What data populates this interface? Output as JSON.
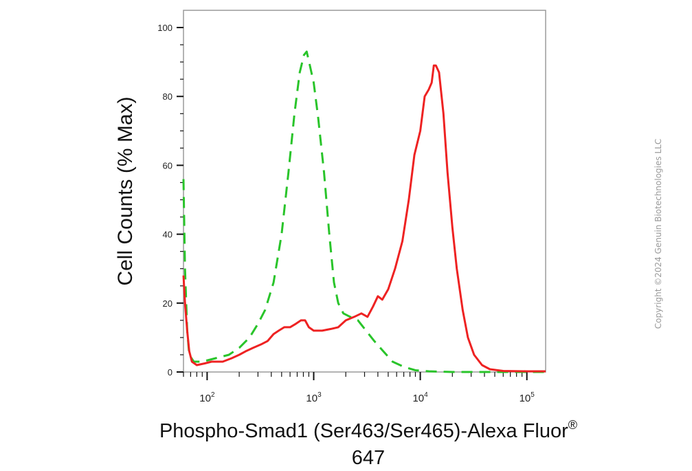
{
  "chart_data": {
    "type": "line",
    "title": "",
    "xlabel": "Phospho-Smad1 (Ser463/Ser465)-Alexa Fluor",
    "xlabel_superscript": "®",
    "xlabel_line2": "647",
    "ylabel": "Cell Counts (% Max)",
    "x_scale": "log",
    "xlim": [
      60,
      150000
    ],
    "ylim": [
      0,
      105
    ],
    "x_ticks": [
      {
        "value": 100,
        "base": "10",
        "exp": "2"
      },
      {
        "value": 1000,
        "base": "10",
        "exp": "3"
      },
      {
        "value": 10000,
        "base": "10",
        "exp": "4"
      },
      {
        "value": 100000,
        "base": "10",
        "exp": "5"
      }
    ],
    "y_ticks": [
      0,
      20,
      40,
      60,
      80,
      100
    ],
    "grid": false,
    "legend": "none",
    "series": [
      {
        "color": "#29c42a",
        "style": "dashed",
        "points": [
          [
            60,
            56
          ],
          [
            62,
            30
          ],
          [
            65,
            12
          ],
          [
            68,
            5
          ],
          [
            75,
            3
          ],
          [
            90,
            3
          ],
          [
            120,
            4
          ],
          [
            160,
            5
          ],
          [
            200,
            7
          ],
          [
            250,
            10
          ],
          [
            300,
            14
          ],
          [
            350,
            18
          ],
          [
            420,
            26
          ],
          [
            500,
            40
          ],
          [
            580,
            58
          ],
          [
            660,
            75
          ],
          [
            740,
            87
          ],
          [
            810,
            92
          ],
          [
            860,
            93
          ],
          [
            920,
            89
          ],
          [
            1000,
            84
          ],
          [
            1100,
            74
          ],
          [
            1250,
            58
          ],
          [
            1400,
            40
          ],
          [
            1550,
            26
          ],
          [
            1700,
            20
          ],
          [
            1900,
            17
          ],
          [
            2200,
            16
          ],
          [
            2600,
            15
          ],
          [
            3100,
            12
          ],
          [
            3700,
            9
          ],
          [
            4500,
            6
          ],
          [
            5500,
            3
          ],
          [
            7000,
            1.5
          ],
          [
            9000,
            0.5
          ],
          [
            12000,
            0.2
          ],
          [
            20000,
            0
          ],
          [
            150000,
            0
          ]
        ]
      },
      {
        "color": "#ee2222",
        "style": "solid",
        "points": [
          [
            60,
            28
          ],
          [
            62,
            20
          ],
          [
            65,
            12
          ],
          [
            68,
            6
          ],
          [
            72,
            3
          ],
          [
            80,
            2
          ],
          [
            95,
            2.5
          ],
          [
            110,
            3
          ],
          [
            140,
            3
          ],
          [
            170,
            4
          ],
          [
            200,
            5
          ],
          [
            230,
            6
          ],
          [
            270,
            7
          ],
          [
            320,
            8
          ],
          [
            370,
            9
          ],
          [
            420,
            11
          ],
          [
            470,
            12
          ],
          [
            530,
            13
          ],
          [
            600,
            13
          ],
          [
            680,
            14
          ],
          [
            760,
            15
          ],
          [
            830,
            15
          ],
          [
            900,
            13
          ],
          [
            1000,
            12
          ],
          [
            1200,
            12
          ],
          [
            1450,
            12.5
          ],
          [
            1700,
            13
          ],
          [
            2000,
            15
          ],
          [
            2400,
            16
          ],
          [
            2800,
            17
          ],
          [
            3200,
            16
          ],
          [
            3600,
            19
          ],
          [
            4000,
            22
          ],
          [
            4400,
            21
          ],
          [
            5000,
            24
          ],
          [
            5800,
            30
          ],
          [
            6800,
            38
          ],
          [
            7800,
            50
          ],
          [
            8800,
            63
          ],
          [
            10000,
            70
          ],
          [
            11000,
            80
          ],
          [
            12000,
            82
          ],
          [
            12800,
            84
          ],
          [
            13400,
            89
          ],
          [
            14000,
            89
          ],
          [
            15000,
            87
          ],
          [
            16500,
            75
          ],
          [
            18000,
            58
          ],
          [
            20000,
            42
          ],
          [
            22000,
            30
          ],
          [
            25000,
            18
          ],
          [
            28000,
            10
          ],
          [
            32000,
            5
          ],
          [
            38000,
            2
          ],
          [
            45000,
            0.8
          ],
          [
            60000,
            0.3
          ],
          [
            100000,
            0.2
          ],
          [
            150000,
            0.2
          ]
        ]
      }
    ]
  },
  "watermark": {
    "text": "Copyright ©2024 Genuin Biotechnologies LLC",
    "color": "#9a9a9a"
  }
}
